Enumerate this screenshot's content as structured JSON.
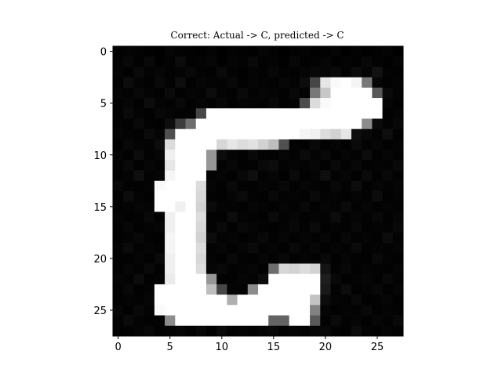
{
  "chart_data": {
    "type": "heatmap",
    "title": "Correct: Actual -> С, predicted -> С",
    "xlabel": "",
    "ylabel": "",
    "colormap": "gray",
    "value_range": [
      0,
      255
    ],
    "grid": false,
    "x_ticks": [
      "0",
      "5",
      "10",
      "15",
      "20",
      "25"
    ],
    "y_ticks": [
      "0",
      "5",
      "10",
      "15",
      "20",
      "25"
    ],
    "xlim": [
      -0.5,
      27.5
    ],
    "ylim": [
      27.5,
      -0.5
    ],
    "matrix": [
      [
        2,
        4,
        3,
        1,
        0,
        5,
        3,
        2,
        1,
        4,
        0,
        3,
        2,
        1,
        5,
        2,
        0,
        3,
        4,
        1,
        2,
        5,
        0,
        3,
        1,
        2,
        4,
        0
      ],
      [
        3,
        8,
        2,
        9,
        1,
        3,
        12,
        2,
        4,
        6,
        1,
        5,
        3,
        9,
        2,
        4,
        1,
        7,
        2,
        3,
        6,
        1,
        4,
        2,
        8,
        3,
        1,
        5
      ],
      [
        4,
        2,
        10,
        3,
        6,
        2,
        4,
        8,
        3,
        2,
        10,
        3,
        1,
        4,
        2,
        7,
        3,
        2,
        5,
        8,
        6,
        10,
        3,
        12,
        4,
        18,
        3,
        2
      ],
      [
        2,
        12,
        4,
        2,
        9,
        3,
        14,
        2,
        6,
        4,
        3,
        8,
        2,
        5,
        3,
        2,
        6,
        3,
        12,
        70,
        230,
        250,
        255,
        245,
        120,
        6,
        2,
        4
      ],
      [
        5,
        3,
        8,
        4,
        2,
        10,
        2,
        5,
        3,
        12,
        4,
        2,
        9,
        3,
        6,
        4,
        2,
        8,
        3,
        120,
        200,
        255,
        255,
        255,
        255,
        90,
        10,
        3
      ],
      [
        3,
        6,
        2,
        12,
        4,
        3,
        8,
        2,
        5,
        3,
        7,
        2,
        5,
        4,
        3,
        8,
        2,
        4,
        75,
        220,
        250,
        255,
        255,
        255,
        255,
        255,
        6,
        2
      ],
      [
        2,
        10,
        4,
        2,
        8,
        5,
        3,
        4,
        70,
        255,
        255,
        255,
        255,
        255,
        255,
        255,
        255,
        255,
        255,
        255,
        255,
        255,
        255,
        255,
        255,
        255,
        2,
        5
      ],
      [
        4,
        2,
        9,
        3,
        2,
        14,
        60,
        110,
        255,
        255,
        255,
        255,
        255,
        255,
        255,
        255,
        255,
        255,
        255,
        255,
        255,
        255,
        255,
        255,
        140,
        10,
        3,
        8
      ],
      [
        6,
        3,
        2,
        10,
        5,
        80,
        255,
        255,
        255,
        255,
        255,
        255,
        255,
        255,
        255,
        255,
        255,
        255,
        245,
        240,
        220,
        210,
        230,
        12,
        8,
        3,
        14,
        2
      ],
      [
        2,
        8,
        4,
        3,
        12,
        220,
        255,
        255,
        255,
        255,
        215,
        230,
        220,
        225,
        210,
        190,
        80,
        3,
        2,
        8,
        3,
        5,
        2,
        10,
        3,
        6,
        2,
        4
      ],
      [
        5,
        2,
        12,
        3,
        6,
        240,
        255,
        255,
        255,
        150,
        12,
        4,
        2,
        8,
        3,
        2,
        6,
        3,
        10,
        4,
        8,
        2,
        5,
        3,
        12,
        2,
        6,
        3
      ],
      [
        3,
        9,
        2,
        6,
        3,
        230,
        255,
        255,
        255,
        150,
        3,
        7,
        2,
        3,
        9,
        12,
        3,
        5,
        3,
        6,
        2,
        9,
        3,
        7,
        2,
        4,
        3,
        9
      ],
      [
        2,
        4,
        15,
        3,
        5,
        245,
        255,
        255,
        255,
        3,
        5,
        2,
        8,
        14,
        3,
        6,
        2,
        10,
        2,
        4,
        14,
        3,
        6,
        2,
        10,
        2,
        8,
        3
      ],
      [
        8,
        3,
        2,
        4,
        250,
        255,
        255,
        255,
        220,
        5,
        2,
        9,
        3,
        2,
        5,
        3,
        8,
        2,
        6,
        3,
        2,
        8,
        3,
        12,
        2,
        5,
        3,
        6
      ],
      [
        3,
        12,
        4,
        2,
        255,
        255,
        255,
        255,
        215,
        3,
        2,
        5,
        10,
        3,
        2,
        8,
        3,
        4,
        2,
        9,
        3,
        4,
        2,
        5,
        3,
        12,
        2,
        4
      ],
      [
        2,
        4,
        6,
        5,
        255,
        255,
        240,
        255,
        210,
        10,
        4,
        3,
        2,
        6,
        4,
        2,
        5,
        3,
        8,
        2,
        5,
        3,
        10,
        3,
        6,
        2,
        4,
        3
      ],
      [
        5,
        2,
        3,
        9,
        2,
        240,
        255,
        255,
        220,
        3,
        2,
        12,
        4,
        3,
        2,
        10,
        3,
        6,
        2,
        4,
        3,
        12,
        2,
        5,
        3,
        8,
        2,
        6
      ],
      [
        3,
        7,
        2,
        4,
        6,
        240,
        255,
        255,
        215,
        3,
        10,
        2,
        8,
        5,
        3,
        2,
        4,
        8,
        3,
        10,
        2,
        4,
        3,
        8,
        2,
        4,
        3,
        9
      ],
      [
        2,
        4,
        8,
        3,
        2,
        245,
        255,
        255,
        210,
        12,
        3,
        5,
        2,
        4,
        9,
        3,
        6,
        2,
        5,
        3,
        6,
        2,
        8,
        3,
        5,
        2,
        12,
        3
      ],
      [
        4,
        10,
        3,
        5,
        3,
        245,
        255,
        255,
        220,
        3,
        6,
        2,
        5,
        10,
        3,
        5,
        2,
        9,
        3,
        6,
        2,
        5,
        3,
        10,
        2,
        4,
        3,
        5
      ],
      [
        3,
        2,
        5,
        2,
        10,
        240,
        255,
        255,
        215,
        4,
        2,
        9,
        3,
        2,
        6,
        3,
        8,
        2,
        4,
        3,
        9,
        2,
        5,
        3,
        2,
        9,
        4,
        2
      ],
      [
        2,
        6,
        3,
        9,
        2,
        240,
        255,
        255,
        220,
        5,
        8,
        3,
        4,
        6,
        2,
        110,
        215,
        210,
        220,
        210,
        20,
        3,
        8,
        2,
        4,
        3,
        2,
        5
      ],
      [
        5,
        3,
        12,
        2,
        4,
        235,
        255,
        255,
        255,
        150,
        3,
        2,
        6,
        3,
        12,
        255,
        255,
        255,
        255,
        255,
        30,
        8,
        2,
        4,
        6,
        2,
        8,
        3
      ],
      [
        3,
        8,
        2,
        4,
        255,
        255,
        255,
        255,
        255,
        190,
        70,
        4,
        3,
        140,
        255,
        255,
        255,
        255,
        255,
        255,
        25,
        3,
        12,
        2,
        4,
        8,
        2,
        6
      ],
      [
        2,
        4,
        3,
        6,
        255,
        255,
        255,
        255,
        255,
        255,
        255,
        175,
        255,
        255,
        255,
        255,
        255,
        255,
        255,
        195,
        12,
        5,
        3,
        9,
        2,
        3,
        6,
        2
      ],
      [
        6,
        2,
        9,
        3,
        250,
        255,
        255,
        255,
        255,
        255,
        255,
        255,
        255,
        255,
        255,
        255,
        255,
        255,
        255,
        130,
        5,
        2,
        4,
        3,
        8,
        2,
        4,
        3
      ],
      [
        3,
        10,
        4,
        2,
        3,
        140,
        255,
        255,
        255,
        255,
        255,
        255,
        255,
        255,
        255,
        100,
        100,
        255,
        255,
        90,
        2,
        10,
        3,
        5,
        2,
        6,
        3,
        9
      ],
      [
        2,
        3,
        5,
        8,
        2,
        4,
        6,
        3,
        8,
        2,
        10,
        3,
        4,
        2,
        5,
        8,
        3,
        4,
        2,
        6,
        8,
        3,
        2,
        12,
        4,
        2,
        5,
        3
      ]
    ]
  }
}
